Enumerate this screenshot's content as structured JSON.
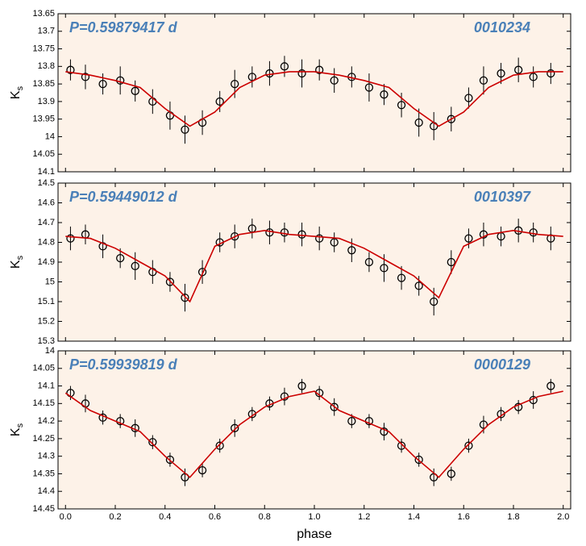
{
  "chart_data": [
    {
      "type": "scatter",
      "title": "P=0.59879417 d",
      "annotation": "0010234",
      "ylabel": {
        "main": "K",
        "sub": "s"
      },
      "ylim": [
        13.65,
        14.1
      ],
      "y_inverted": true,
      "yticks": [
        13.65,
        13.7,
        13.75,
        13.8,
        13.85,
        13.9,
        13.95,
        14,
        14.05,
        14.1
      ],
      "points": {
        "color": "#000000",
        "x": [
          0.02,
          0.08,
          0.15,
          0.22,
          0.28,
          0.35,
          0.42,
          0.48,
          0.55,
          0.62,
          0.68,
          0.75,
          0.82,
          0.88,
          0.95,
          1.02,
          1.08,
          1.15,
          1.22,
          1.28,
          1.35,
          1.42,
          1.48,
          1.55,
          1.62,
          1.68,
          1.75,
          1.82,
          1.88,
          1.95
        ],
        "values": [
          13.81,
          13.83,
          13.85,
          13.84,
          13.87,
          13.9,
          13.94,
          13.98,
          13.96,
          13.9,
          13.85,
          13.83,
          13.82,
          13.8,
          13.82,
          13.81,
          13.84,
          13.83,
          13.86,
          13.88,
          13.91,
          13.96,
          13.97,
          13.95,
          13.89,
          13.84,
          13.82,
          13.81,
          13.83,
          13.82
        ],
        "errors": [
          0.03,
          0.035,
          0.03,
          0.04,
          0.03,
          0.035,
          0.04,
          0.04,
          0.035,
          0.03,
          0.04,
          0.03,
          0.035,
          0.03,
          0.04,
          0.03,
          0.035,
          0.03,
          0.04,
          0.03,
          0.035,
          0.04,
          0.04,
          0.035,
          0.03,
          0.04,
          0.03,
          0.035,
          0.03,
          0.03
        ]
      },
      "fit": {
        "color": "#cc0000",
        "x": [
          0,
          0.1,
          0.2,
          0.3,
          0.4,
          0.5,
          0.6,
          0.7,
          0.8,
          0.9,
          1,
          1.1,
          1.2,
          1.3,
          1.4,
          1.5,
          1.6,
          1.7,
          1.8,
          1.9,
          2
        ],
        "values": [
          13.815,
          13.825,
          13.84,
          13.86,
          13.92,
          13.97,
          13.93,
          13.86,
          13.825,
          13.815,
          13.815,
          13.825,
          13.84,
          13.86,
          13.92,
          13.97,
          13.93,
          13.86,
          13.825,
          13.815,
          13.815
        ]
      }
    },
    {
      "type": "scatter",
      "title": "P=0.59449012 d",
      "annotation": "0010397",
      "ylabel": {
        "main": "K",
        "sub": "s"
      },
      "ylim": [
        14.5,
        15.3
      ],
      "y_inverted": true,
      "yticks": [
        14.5,
        14.6,
        14.7,
        14.8,
        14.9,
        15,
        15.1,
        15.2,
        15.3
      ],
      "points": {
        "color": "#000000",
        "x": [
          0.02,
          0.08,
          0.15,
          0.22,
          0.28,
          0.35,
          0.42,
          0.48,
          0.55,
          0.62,
          0.68,
          0.75,
          0.82,
          0.88,
          0.95,
          1.02,
          1.08,
          1.15,
          1.22,
          1.28,
          1.35,
          1.42,
          1.48,
          1.55,
          1.62,
          1.68,
          1.75,
          1.82,
          1.88,
          1.95
        ],
        "values": [
          14.78,
          14.76,
          14.82,
          14.88,
          14.92,
          14.95,
          15.0,
          15.08,
          14.95,
          14.8,
          14.77,
          14.73,
          14.75,
          14.75,
          14.76,
          14.78,
          14.8,
          14.84,
          14.9,
          14.93,
          14.98,
          15.02,
          15.1,
          14.9,
          14.78,
          14.76,
          14.77,
          14.74,
          14.75,
          14.78
        ],
        "errors": [
          0.06,
          0.05,
          0.06,
          0.05,
          0.07,
          0.06,
          0.05,
          0.07,
          0.06,
          0.05,
          0.06,
          0.05,
          0.06,
          0.05,
          0.06,
          0.06,
          0.05,
          0.06,
          0.05,
          0.07,
          0.06,
          0.05,
          0.07,
          0.06,
          0.05,
          0.06,
          0.05,
          0.06,
          0.05,
          0.06
        ]
      },
      "fit": {
        "color": "#cc0000",
        "x": [
          0,
          0.1,
          0.2,
          0.3,
          0.4,
          0.5,
          0.6,
          0.7,
          0.8,
          0.9,
          1,
          1.1,
          1.2,
          1.3,
          1.4,
          1.5,
          1.6,
          1.7,
          1.8,
          1.9,
          2
        ],
        "values": [
          14.77,
          14.78,
          14.83,
          14.9,
          14.97,
          15.1,
          14.82,
          14.76,
          14.74,
          14.76,
          14.77,
          14.78,
          14.83,
          14.9,
          14.97,
          15.08,
          14.82,
          14.76,
          14.74,
          14.76,
          14.77
        ]
      }
    },
    {
      "type": "scatter",
      "title": "P=0.59939819 d",
      "annotation": "0000129",
      "ylabel": {
        "main": "K",
        "sub": "s"
      },
      "xlabel": "phase",
      "ylim": [
        14,
        14.45
      ],
      "y_inverted": true,
      "yticks": [
        14,
        14.05,
        14.1,
        14.15,
        14.2,
        14.25,
        14.3,
        14.35,
        14.4,
        14.45
      ],
      "xlim": [
        -0.03,
        2.03
      ],
      "xticks": [
        {
          "value": 0,
          "label": "0.0"
        },
        {
          "value": 0.2,
          "label": "0.2"
        },
        {
          "value": 0.4,
          "label": "0.4"
        },
        {
          "value": 0.6,
          "label": "0.6"
        },
        {
          "value": 0.8,
          "label": "0.8"
        },
        {
          "value": 1,
          "label": "1.0"
        },
        {
          "value": 1.2,
          "label": "1.2"
        },
        {
          "value": 1.4,
          "label": "1.4"
        },
        {
          "value": 1.6,
          "label": "1.6"
        },
        {
          "value": 1.8,
          "label": "1.8"
        },
        {
          "value": 2,
          "label": "2.0"
        }
      ],
      "points": {
        "color": "#000000",
        "x": [
          0.02,
          0.08,
          0.15,
          0.22,
          0.28,
          0.35,
          0.42,
          0.48,
          0.55,
          0.62,
          0.68,
          0.75,
          0.82,
          0.88,
          0.95,
          1.02,
          1.08,
          1.15,
          1.22,
          1.28,
          1.35,
          1.42,
          1.48,
          1.55,
          1.62,
          1.68,
          1.75,
          1.82,
          1.88,
          1.95
        ],
        "values": [
          14.12,
          14.15,
          14.19,
          14.2,
          14.22,
          14.26,
          14.31,
          14.36,
          14.34,
          14.27,
          14.22,
          14.18,
          14.15,
          14.13,
          14.1,
          14.12,
          14.16,
          14.2,
          14.2,
          14.23,
          14.27,
          14.31,
          14.36,
          14.35,
          14.27,
          14.21,
          14.18,
          14.16,
          14.14,
          14.1
        ],
        "errors": [
          0.02,
          0.025,
          0.02,
          0.02,
          0.025,
          0.02,
          0.02,
          0.025,
          0.02,
          0.02,
          0.025,
          0.02,
          0.02,
          0.025,
          0.02,
          0.02,
          0.025,
          0.02,
          0.02,
          0.025,
          0.02,
          0.02,
          0.025,
          0.02,
          0.02,
          0.025,
          0.02,
          0.02,
          0.025,
          0.02
        ]
      },
      "fit": {
        "color": "#cc0000",
        "x": [
          0,
          0.1,
          0.2,
          0.3,
          0.4,
          0.5,
          0.6,
          0.7,
          0.8,
          0.9,
          1,
          1.1,
          1.2,
          1.3,
          1.4,
          1.5,
          1.6,
          1.7,
          1.8,
          1.9,
          2
        ],
        "values": [
          14.12,
          14.17,
          14.2,
          14.23,
          14.3,
          14.36,
          14.28,
          14.21,
          14.16,
          14.13,
          14.115,
          14.17,
          14.2,
          14.23,
          14.3,
          14.36,
          14.28,
          14.21,
          14.16,
          14.13,
          14.115
        ]
      }
    }
  ]
}
